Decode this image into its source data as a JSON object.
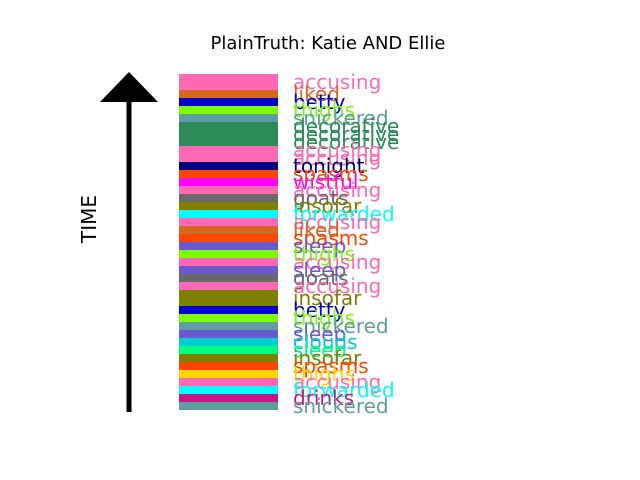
{
  "chart_data": {
    "type": "bar",
    "title": "PlainTruth: Katie AND Ellie",
    "ylabel": "TIME",
    "stripes": [
      {
        "word": "accusing",
        "color": "#ff69b4",
        "start": 0,
        "end": 2
      },
      {
        "word": "liked",
        "color": "#d2691e",
        "start": 2,
        "end": 3
      },
      {
        "word": "betty",
        "color": "#0000cd",
        "start": 3,
        "end": 4
      },
      {
        "word": "thighs",
        "color": "#7cfc00",
        "start": 4,
        "end": 5
      },
      {
        "word": "snickered",
        "color": "#5f9ea0",
        "start": 5,
        "end": 6
      },
      {
        "word": "decorative",
        "color": "#2e8b57",
        "start": 6,
        "end": 7
      },
      {
        "word": "decorative",
        "color": "#2e8b57",
        "start": 7,
        "end": 8
      },
      {
        "word": "decorative",
        "color": "#2e8b57",
        "start": 8,
        "end": 9
      },
      {
        "word": "accusing",
        "color": "#ff69b4",
        "start": 9,
        "end": 10
      },
      {
        "word": "accusing",
        "color": "#ff69b4",
        "start": 10,
        "end": 11
      },
      {
        "word": "tonight",
        "color": "#000080",
        "start": 11,
        "end": 12
      },
      {
        "word": "spasms",
        "color": "#ff4500",
        "start": 12,
        "end": 13
      },
      {
        "word": "wistful",
        "color": "#ff00ff",
        "start": 13,
        "end": 14
      },
      {
        "word": "accusing",
        "color": "#ff69b4",
        "start": 14,
        "end": 15
      },
      {
        "word": "goats",
        "color": "#696969",
        "start": 15,
        "end": 16
      },
      {
        "word": "insofar",
        "color": "#808000",
        "start": 16,
        "end": 17
      },
      {
        "word": "forwarded",
        "color": "#00ffff",
        "start": 17,
        "end": 18
      },
      {
        "word": "accusing",
        "color": "#ff69b4",
        "start": 18,
        "end": 19
      },
      {
        "word": "liked",
        "color": "#d2691e",
        "start": 19,
        "end": 20
      },
      {
        "word": "spasms",
        "color": "#ff4500",
        "start": 20,
        "end": 21
      },
      {
        "word": "sleep",
        "color": "#6a5acd",
        "start": 21,
        "end": 22
      },
      {
        "word": "thighs",
        "color": "#7cfc00",
        "start": 22,
        "end": 23
      },
      {
        "word": "accusing",
        "color": "#ff69b4",
        "start": 23,
        "end": 24
      },
      {
        "word": "sleep",
        "color": "#6a5acd",
        "start": 24,
        "end": 25
      },
      {
        "word": "goats",
        "color": "#696969",
        "start": 25,
        "end": 26
      },
      {
        "word": "accusing",
        "color": "#ff69b4",
        "start": 26,
        "end": 27
      },
      {
        "word": "insofar",
        "color": "#808000",
        "start": 27,
        "end": 29
      },
      {
        "word": "betty",
        "color": "#0000cd",
        "start": 29,
        "end": 30
      },
      {
        "word": "thighs",
        "color": "#7cfc00",
        "start": 30,
        "end": 31
      },
      {
        "word": "snickered",
        "color": "#5f9ea0",
        "start": 31,
        "end": 32
      },
      {
        "word": "sleep",
        "color": "#6a5acd",
        "start": 32,
        "end": 33
      },
      {
        "word": "clouds",
        "color": "#00ced1",
        "start": 33,
        "end": 34
      },
      {
        "word": "sleep",
        "color": "#00ff7f",
        "start": 34,
        "end": 35
      },
      {
        "word": "insofar",
        "color": "#808000",
        "start": 35,
        "end": 36
      },
      {
        "word": "spasms",
        "color": "#ff4500",
        "start": 36,
        "end": 37
      },
      {
        "word": "thighs",
        "color": "#ffd700",
        "start": 37,
        "end": 38
      },
      {
        "word": "accusing",
        "color": "#ff69b4",
        "start": 38,
        "end": 39
      },
      {
        "word": "forwarded",
        "color": "#00ffff",
        "start": 39,
        "end": 40
      },
      {
        "word": "drinks",
        "color": "#c71585",
        "start": 40,
        "end": 41
      },
      {
        "word": "snickered",
        "color": "#5f9ea0",
        "start": 41,
        "end": 42
      }
    ]
  }
}
